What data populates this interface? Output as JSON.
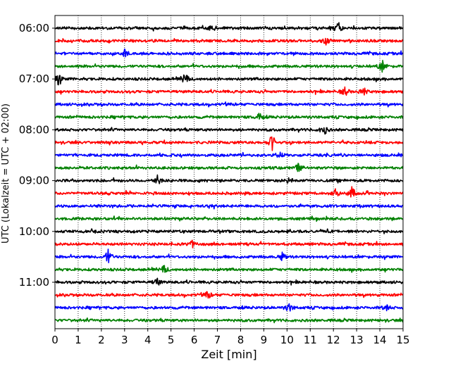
{
  "chart_data": {
    "type": "line",
    "subtype": "helicorder-seismogram",
    "xlabel": "Zeit  [min]",
    "ylabel": "UTC (Lokalzeit = UTC + 02:00)",
    "xlim": [
      0,
      15
    ],
    "x_ticks": [
      "0",
      "1",
      "2",
      "3",
      "4",
      "5",
      "6",
      "7",
      "8",
      "9",
      "10",
      "11",
      "12",
      "13",
      "14",
      "15"
    ],
    "vertical_grid": "dotted at every minute",
    "y_ticks": [
      "06:00",
      "07:00",
      "08:00",
      "09:00",
      "10:00",
      "11:00"
    ],
    "rows_per_hour": 4,
    "minutes_per_row": 15,
    "row_start_times": [
      "06:00",
      "06:15",
      "06:30",
      "06:45",
      "07:00",
      "07:15",
      "07:30",
      "07:45",
      "08:00",
      "08:15",
      "08:30",
      "08:45",
      "09:00",
      "09:15",
      "09:30",
      "09:45",
      "10:00",
      "10:15",
      "10:30",
      "10:45",
      "11:00",
      "11:15",
      "11:30",
      "11:45"
    ],
    "color_cycle": [
      "#000000",
      "#ff0000",
      "#0000ff",
      "#008000"
    ],
    "events": [
      {
        "row": 0,
        "minute": 12.2,
        "amplitude": 0.5
      },
      {
        "row": 0,
        "minute": 6.8,
        "amplitude": 0.25
      },
      {
        "row": 1,
        "minute": 11.7,
        "amplitude": 0.3
      },
      {
        "row": 2,
        "minute": 3.0,
        "amplitude": 0.3
      },
      {
        "row": 3,
        "minute": 14.1,
        "amplitude": 0.5
      },
      {
        "row": 4,
        "minute": 0.15,
        "amplitude": 0.45
      },
      {
        "row": 4,
        "minute": 5.6,
        "amplitude": 0.5
      },
      {
        "row": 5,
        "minute": 12.5,
        "amplitude": 0.35
      },
      {
        "row": 5,
        "minute": 13.3,
        "amplitude": 0.35
      },
      {
        "row": 7,
        "minute": 8.8,
        "amplitude": 0.3
      },
      {
        "row": 8,
        "minute": 11.6,
        "amplitude": 0.45
      },
      {
        "row": 9,
        "minute": 9.35,
        "amplitude": 0.7
      },
      {
        "row": 10,
        "minute": 9.7,
        "amplitude": 0.25
      },
      {
        "row": 11,
        "minute": 10.5,
        "amplitude": 0.35
      },
      {
        "row": 12,
        "minute": 4.4,
        "amplitude": 0.45
      },
      {
        "row": 12,
        "minute": 10.1,
        "amplitude": 0.3
      },
      {
        "row": 13,
        "minute": 12.1,
        "amplitude": 0.3
      },
      {
        "row": 13,
        "minute": 12.8,
        "amplitude": 0.5
      },
      {
        "row": 17,
        "minute": 5.9,
        "amplitude": 0.3
      },
      {
        "row": 18,
        "minute": 2.3,
        "amplitude": 0.6
      },
      {
        "row": 18,
        "minute": 9.8,
        "amplitude": 0.3
      },
      {
        "row": 19,
        "minute": 4.7,
        "amplitude": 0.3
      },
      {
        "row": 20,
        "minute": 4.4,
        "amplitude": 0.3
      },
      {
        "row": 21,
        "minute": 6.6,
        "amplitude": 0.3
      },
      {
        "row": 22,
        "minute": 10.1,
        "amplitude": 0.35
      },
      {
        "row": 22,
        "minute": 14.3,
        "amplitude": 0.25
      }
    ]
  }
}
